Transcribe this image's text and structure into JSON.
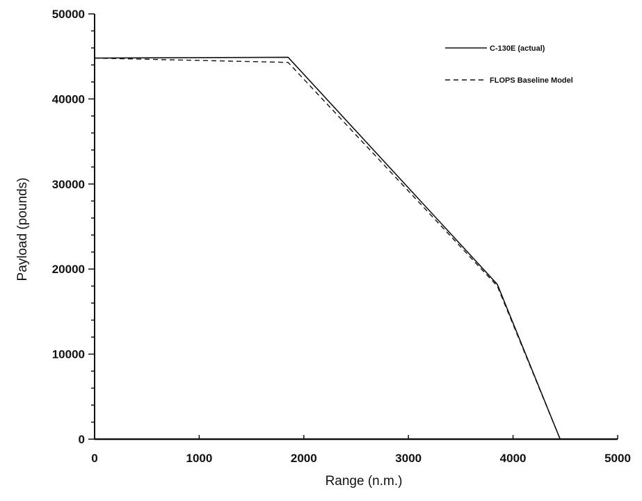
{
  "chart_data": {
    "type": "line",
    "title": "",
    "xlabel": "Range (n.m.)",
    "ylabel": "Payload (pounds)",
    "xlim": [
      0,
      5000
    ],
    "ylim": [
      0,
      50000
    ],
    "x_ticks": [
      0,
      1000,
      2000,
      3000,
      4000,
      5000
    ],
    "x_tick_labels": [
      "0",
      "1000",
      "2000",
      "3000",
      "4000",
      "5000"
    ],
    "y_ticks": [
      0,
      10000,
      20000,
      30000,
      40000,
      50000
    ],
    "y_tick_labels": [
      "0",
      "10000",
      "20000",
      "30000",
      "40000",
      "50000"
    ],
    "grid": false,
    "legend_position": "top-right",
    "series": [
      {
        "name": "C-130E (actual)",
        "style": "solid",
        "color": "#111111",
        "x": [
          0,
          1850,
          3850,
          4450
        ],
        "y": [
          44800,
          44900,
          18200,
          0
        ]
      },
      {
        "name": "FLOPS Baseline Model",
        "style": "dashed",
        "color": "#111111",
        "x": [
          0,
          1850,
          3850,
          4450
        ],
        "y": [
          44800,
          44300,
          18000,
          0
        ]
      }
    ]
  }
}
